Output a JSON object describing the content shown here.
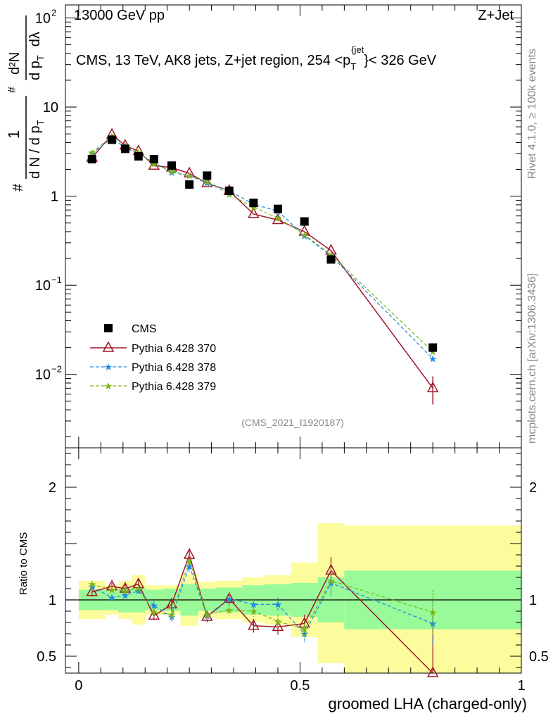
{
  "header": {
    "left": "13000 GeV pp",
    "right": "Z+Jet",
    "side_rivet": "Rivet 4.1.0, ≥ 100k events",
    "side_mcplots": "mcplots.cern.ch [arXiv:1306.3436]"
  },
  "title": {
    "main": "CMS, 13 TeV, AK8 jets, Z+jet region, 254 <p",
    "sub": "T",
    "sup": "{jet",
    "close": "}< 326 GeV"
  },
  "ylabel": {
    "frac_num": "1",
    "frac_den": "d N / d p",
    "frac_den_sub": "T",
    "d2_num": "d²N",
    "d2_den": "d p",
    "d2_den_sub": "T",
    "d2_den_end": "dλ",
    "hash": "#"
  },
  "analysis_id": "(CMS_2021_I1920187)",
  "xlabel": "groomed LHA (charged-only)",
  "ratio_ylabel": "Ratio to CMS",
  "colors": {
    "data": "#000000",
    "p370": "#a0162a",
    "p378": "#1e88e5",
    "p379": "#7cb518",
    "band_inner": "#99fa99",
    "band_outer": "#fcfc9c"
  },
  "chart_data": {
    "type": "scatter",
    "top": {
      "yscale": "log",
      "ylim": [
        0.0015,
        140
      ],
      "yticks": [
        {
          "v": 0.01,
          "label": "10",
          "exp": "−2"
        },
        {
          "v": 0.1,
          "label": "10",
          "exp": "−1"
        },
        {
          "v": 1,
          "label": "1",
          "exp": ""
        },
        {
          "v": 10,
          "label": "10",
          "exp": ""
        },
        {
          "v": 100,
          "label": "10",
          "exp": "2"
        }
      ]
    },
    "ratio": {
      "ylim": [
        0.35,
        2.35
      ],
      "yticks": [
        {
          "v": 0.5,
          "label": "0.5"
        },
        {
          "v": 1,
          "label": "1"
        },
        {
          "v": 2,
          "label": "2"
        }
      ]
    },
    "xlim": [
      -0.03,
      1.0
    ],
    "xticks": [
      {
        "v": 0,
        "label": "0"
      },
      {
        "v": 0.5,
        "label": "0.5"
      },
      {
        "v": 1,
        "label": "1"
      }
    ],
    "bin_edges": [
      0.0,
      0.06,
      0.09,
      0.12,
      0.15,
      0.19,
      0.23,
      0.27,
      0.31,
      0.37,
      0.42,
      0.48,
      0.54,
      0.6,
      1.0
    ],
    "x": [
      0.03,
      0.075,
      0.105,
      0.135,
      0.17,
      0.21,
      0.25,
      0.29,
      0.34,
      0.395,
      0.45,
      0.51,
      0.57,
      0.8
    ],
    "data": {
      "name": "CMS",
      "values": [
        2.6,
        4.3,
        3.4,
        2.8,
        2.6,
        2.2,
        1.35,
        1.7,
        1.15,
        0.84,
        0.72,
        0.52,
        0.195,
        0.02
      ],
      "band_inner": [
        0.09,
        0.09,
        0.11,
        0.11,
        0.09,
        0.1,
        0.14,
        0.1,
        0.11,
        0.13,
        0.14,
        0.15,
        0.2,
        0.26
      ],
      "band_outer": [
        0.17,
        0.13,
        0.17,
        0.22,
        0.13,
        0.13,
        0.23,
        0.16,
        0.17,
        0.2,
        0.22,
        0.33,
        0.56,
        0.72
      ],
      "band_outer_up": [
        0.17,
        0.13,
        0.17,
        0.22,
        0.13,
        0.13,
        0.23,
        0.16,
        0.17,
        0.2,
        0.22,
        0.33,
        0.68,
        0.66
      ]
    },
    "series": [
      {
        "name": "Pythia 6.428 370",
        "marker": "triangle",
        "dashed": false,
        "values": [
          2.7,
          4.9,
          3.7,
          3.2,
          2.2,
          2.1,
          1.8,
          1.4,
          1.15,
          0.63,
          0.54,
          0.4,
          0.245,
          0.007
        ],
        "ratio": [
          1.07,
          1.12,
          1.1,
          1.14,
          0.86,
          0.96,
          1.4,
          0.85,
          1.01,
          0.77,
          0.76,
          0.79,
          1.26,
          0.35
        ],
        "ratio_err": [
          0.04,
          0.03,
          0.04,
          0.04,
          0.04,
          0.06,
          0.06,
          0.05,
          0.05,
          0.06,
          0.07,
          0.08,
          0.12,
          0.5
        ]
      },
      {
        "name": "Pythia 6.428 378",
        "marker": "star",
        "dashed": true,
        "values": [
          3.0,
          4.5,
          3.5,
          3.0,
          2.4,
          1.85,
          1.7,
          1.4,
          1.15,
          0.81,
          0.68,
          0.36,
          0.215,
          0.015
        ],
        "ratio": [
          1.12,
          1.02,
          1.04,
          1.08,
          0.95,
          0.85,
          1.3,
          0.86,
          1.01,
          0.96,
          0.96,
          0.7,
          1.15,
          0.79
        ],
        "ratio_err": [
          0.03,
          0.03,
          0.03,
          0.03,
          0.04,
          0.04,
          0.05,
          0.04,
          0.05,
          0.05,
          0.06,
          0.08,
          0.12,
          0.2
        ]
      },
      {
        "name": "Pythia 6.428 379",
        "marker": "star",
        "dashed": true,
        "values": [
          3.1,
          4.7,
          3.7,
          3.1,
          2.3,
          1.9,
          1.7,
          1.45,
          1.05,
          0.75,
          0.57,
          0.37,
          0.22,
          0.018
        ],
        "ratio": [
          1.14,
          1.09,
          1.08,
          1.1,
          0.89,
          0.87,
          1.35,
          0.87,
          0.91,
          0.9,
          0.81,
          0.74,
          1.17,
          0.89
        ],
        "ratio_err": [
          0.03,
          0.03,
          0.03,
          0.03,
          0.04,
          0.04,
          0.05,
          0.04,
          0.05,
          0.05,
          0.06,
          0.08,
          0.12,
          0.2
        ]
      }
    ]
  }
}
